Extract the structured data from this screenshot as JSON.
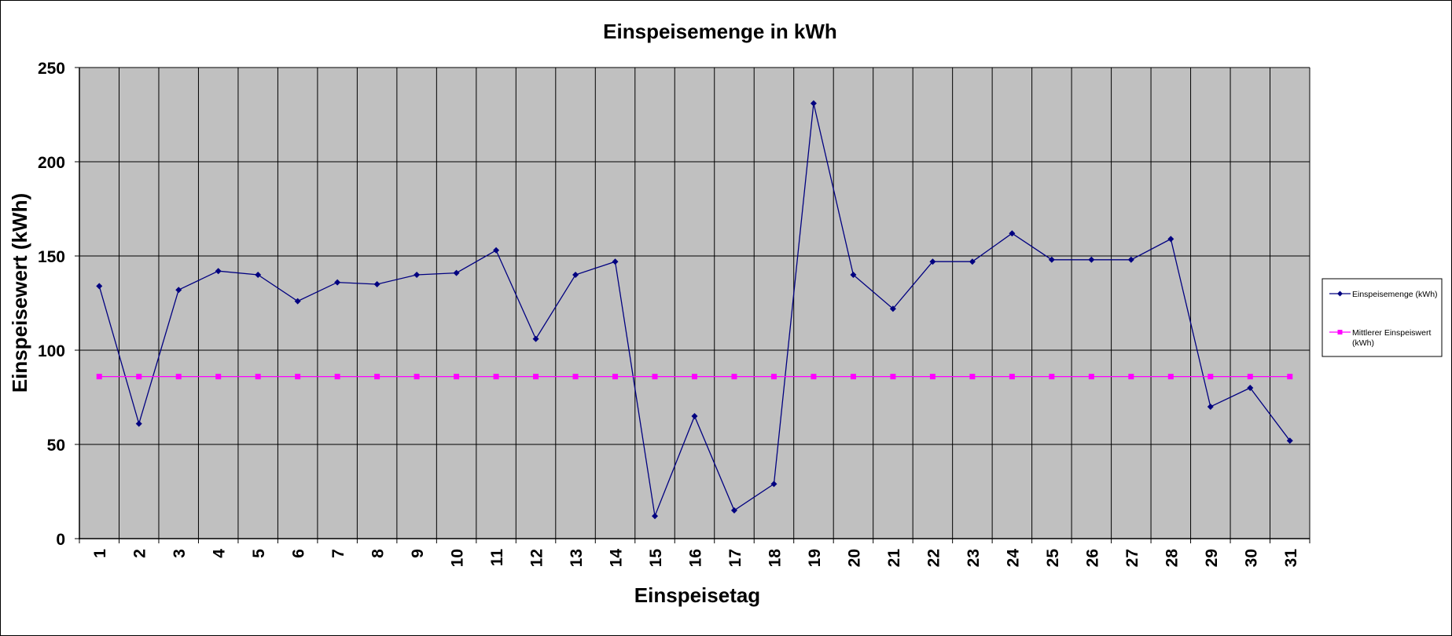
{
  "chart_data": {
    "type": "line",
    "title": "Einspeisemenge in kWh",
    "xlabel": "Einspeisetag",
    "ylabel": "Einspeisewert  (kWh)",
    "categories": [
      "1",
      "2",
      "3",
      "4",
      "5",
      "6",
      "7",
      "8",
      "9",
      "10",
      "11",
      "12",
      "13",
      "14",
      "15",
      "16",
      "17",
      "18",
      "19",
      "20",
      "21",
      "22",
      "23",
      "24",
      "25",
      "26",
      "27",
      "28",
      "29",
      "30",
      "31"
    ],
    "ylim": [
      0,
      250
    ],
    "yticks": [
      "0",
      "50",
      "100",
      "150",
      "200",
      "250"
    ],
    "grid": true,
    "legend_position": "right",
    "series": [
      {
        "name": "Einspeisemenge (kWh)",
        "legend_lines": [
          "Einspeisemenge (kWh)"
        ],
        "color": "#000080",
        "marker": "diamond",
        "values": [
          134,
          61,
          132,
          142,
          140,
          126,
          136,
          135,
          140,
          141,
          153,
          106,
          140,
          147,
          12,
          65,
          15,
          29,
          231,
          140,
          122,
          147,
          147,
          162,
          148,
          148,
          148,
          159,
          70,
          80,
          52
        ]
      },
      {
        "name": "Mittlerer Einspeiswert (kWh)",
        "legend_lines": [
          "Mittlerer Einspeiswert",
          "(kWh)"
        ],
        "color": "#ff00ff",
        "marker": "square",
        "values": [
          86,
          86,
          86,
          86,
          86,
          86,
          86,
          86,
          86,
          86,
          86,
          86,
          86,
          86,
          86,
          86,
          86,
          86,
          86,
          86,
          86,
          86,
          86,
          86,
          86,
          86,
          86,
          86,
          86,
          86,
          86
        ]
      }
    ],
    "plot_background": "#c0c0c0",
    "grid_color": "#000000"
  }
}
